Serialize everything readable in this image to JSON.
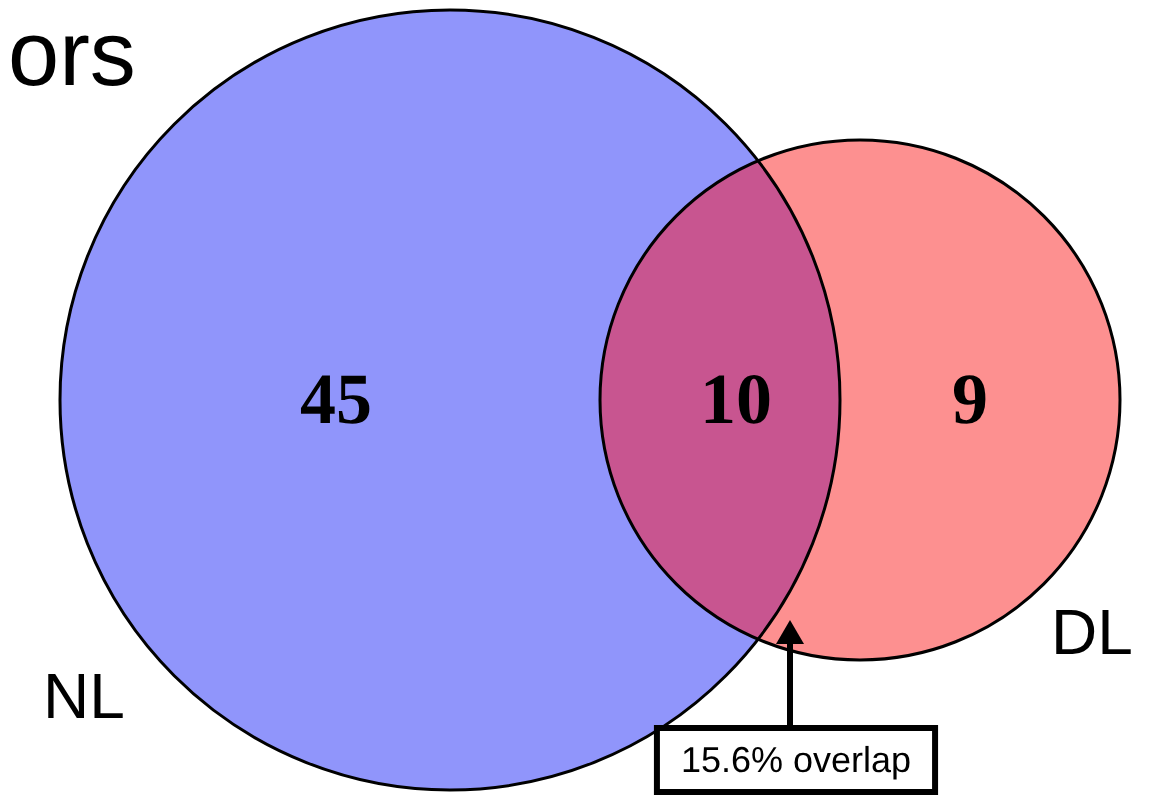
{
  "chart_data": {
    "type": "other",
    "title": "ors",
    "categories": [
      "NL",
      null,
      "DL"
    ],
    "values": [
      45,
      10,
      9
    ],
    "data_labels": true,
    "colors": [
      "#9095fb",
      "#c85590",
      "#fd9090"
    ],
    "annotations": [
      "15.6% overlap"
    ]
  }
}
